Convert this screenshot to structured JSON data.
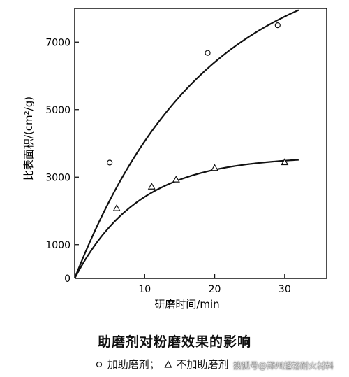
{
  "chart_data": {
    "type": "scatter",
    "title": "",
    "xlabel": "研磨时间/min",
    "ylabel": "比表面积/(cm²/g)",
    "xlim": [
      0,
      36
    ],
    "ylim": [
      0,
      8000
    ],
    "x_ticks": [
      10,
      20,
      30
    ],
    "y_ticks": [
      0,
      1000,
      3000,
      5000,
      7000
    ],
    "grid": false,
    "legend": "bottom",
    "series": [
      {
        "name": "加助磨剂",
        "marker": "circle",
        "points": [
          [
            5,
            3430
          ],
          [
            19,
            6680
          ],
          [
            29,
            7500
          ]
        ],
        "fit_curve": {
          "a": 9600,
          "k": 0.055
        }
      },
      {
        "name": "不加助磨剂",
        "marker": "triangle",
        "points": [
          [
            6,
            2080
          ],
          [
            11,
            2720
          ],
          [
            14.5,
            2930
          ],
          [
            20,
            3270
          ],
          [
            30,
            3440
          ]
        ],
        "fit_curve": {
          "a": 3620,
          "k": 0.11
        }
      }
    ],
    "x_max_curve": 32
  },
  "figure": {
    "caption": "助磨剂对粉磨效果的影响",
    "legend_circle_label": "加助磨剂；",
    "legend_triangle_label": "不加助磨剂"
  },
  "watermark": "搜狐号@郑州超裕耐火材料"
}
